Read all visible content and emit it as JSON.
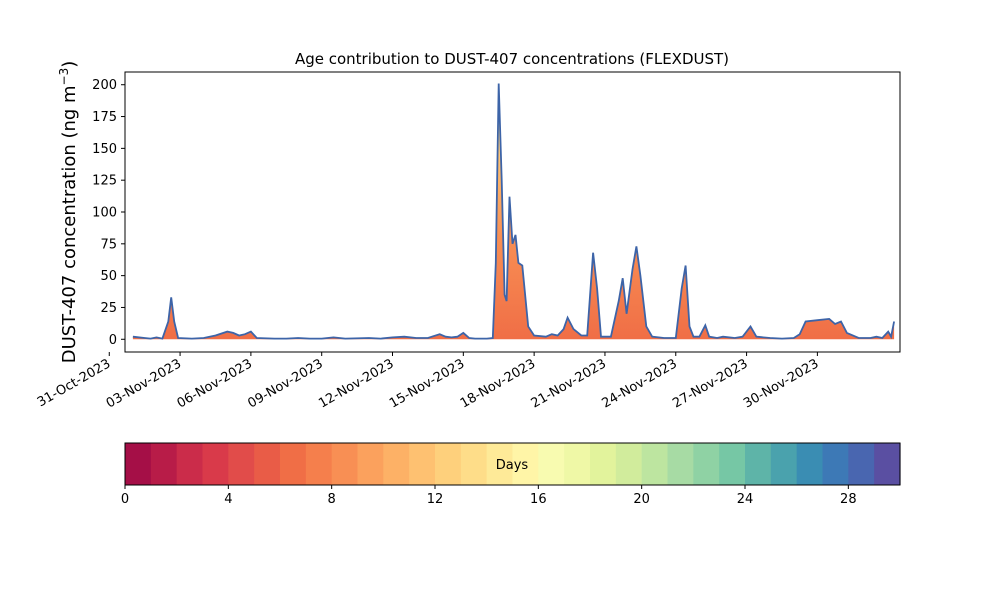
{
  "chart_data": {
    "type": "area",
    "title": "Age contribution to DUST-407 concentrations (FLEXDUST)",
    "ylabel": "DUST-407 concentration (ng m",
    "ylabel_superscript": "−3",
    "ylabel_suffix": ")",
    "xlabel": "",
    "ylim": [
      -10,
      210
    ],
    "xlim": [
      "2023-10-31T16:00",
      "2023-12-03T12:00"
    ],
    "y_ticks": [
      0,
      25,
      50,
      75,
      100,
      125,
      150,
      175,
      200
    ],
    "x_ticks": [
      "31-Oct-2023",
      "03-Nov-2023",
      "06-Nov-2023",
      "09-Nov-2023",
      "12-Nov-2023",
      "15-Nov-2023",
      "18-Nov-2023",
      "21-Nov-2023",
      "24-Nov-2023",
      "27-Nov-2023",
      "30-Nov-2023"
    ],
    "x_tick_dates": [
      "2023-10-31",
      "2023-11-03",
      "2023-11-06",
      "2023-11-09",
      "2023-11-12",
      "2023-11-15",
      "2023-11-18",
      "2023-11-21",
      "2023-11-24",
      "2023-11-27",
      "2023-11-30"
    ],
    "grid": false,
    "series": [
      {
        "line_color": "#3d64a8",
        "points": [
          [
            "2023-11-01T00:00",
            2
          ],
          [
            "2023-11-01T12:00",
            1
          ],
          [
            "2023-11-01T18:00",
            0.5
          ],
          [
            "2023-11-02T00:00",
            1.5
          ],
          [
            "2023-11-02T06:00",
            0.5
          ],
          [
            "2023-11-02T12:00",
            14
          ],
          [
            "2023-11-02T15:00",
            33
          ],
          [
            "2023-11-02T18:00",
            14
          ],
          [
            "2023-11-02T22:00",
            1
          ],
          [
            "2023-11-03T12:00",
            0.5
          ],
          [
            "2023-11-04T00:00",
            1
          ],
          [
            "2023-11-04T12:00",
            3
          ],
          [
            "2023-11-05T00:00",
            6
          ],
          [
            "2023-11-05T06:00",
            5
          ],
          [
            "2023-11-05T12:00",
            3
          ],
          [
            "2023-11-05T18:00",
            4
          ],
          [
            "2023-11-06T00:00",
            6
          ],
          [
            "2023-11-06T06:00",
            1
          ],
          [
            "2023-11-07T00:00",
            0.5
          ],
          [
            "2023-11-07T12:00",
            0.5
          ],
          [
            "2023-11-08T00:00",
            1
          ],
          [
            "2023-11-08T12:00",
            0.5
          ],
          [
            "2023-11-09T00:00",
            0.5
          ],
          [
            "2023-11-09T12:00",
            1.5
          ],
          [
            "2023-11-10T00:00",
            0.5
          ],
          [
            "2023-11-11T00:00",
            1
          ],
          [
            "2023-11-11T12:00",
            0.5
          ],
          [
            "2023-11-12T00:00",
            1.5
          ],
          [
            "2023-11-12T12:00",
            2
          ],
          [
            "2023-11-13T00:00",
            1
          ],
          [
            "2023-11-13T12:00",
            1
          ],
          [
            "2023-11-14T00:00",
            4
          ],
          [
            "2023-11-14T06:00",
            2
          ],
          [
            "2023-11-14T12:00",
            1.5
          ],
          [
            "2023-11-14T18:00",
            2
          ],
          [
            "2023-11-15T00:00",
            5
          ],
          [
            "2023-11-15T06:00",
            1
          ],
          [
            "2023-11-15T12:00",
            0.5
          ],
          [
            "2023-11-16T00:00",
            0.5
          ],
          [
            "2023-11-16T06:00",
            1
          ],
          [
            "2023-11-16T09:00",
            60
          ],
          [
            "2023-11-16T12:00",
            201
          ],
          [
            "2023-11-16T15:00",
            125
          ],
          [
            "2023-11-16T18:00",
            35
          ],
          [
            "2023-11-16T20:00",
            30
          ],
          [
            "2023-11-16T23:00",
            112
          ],
          [
            "2023-11-17T02:00",
            75
          ],
          [
            "2023-11-17T05:00",
            82
          ],
          [
            "2023-11-17T08:00",
            60
          ],
          [
            "2023-11-17T12:00",
            58
          ],
          [
            "2023-11-17T18:00",
            10
          ],
          [
            "2023-11-18T00:00",
            3
          ],
          [
            "2023-11-18T12:00",
            2
          ],
          [
            "2023-11-18T18:00",
            4
          ],
          [
            "2023-11-19T00:00",
            3
          ],
          [
            "2023-11-19T06:00",
            8
          ],
          [
            "2023-11-19T10:00",
            17
          ],
          [
            "2023-11-19T16:00",
            8
          ],
          [
            "2023-11-20T00:00",
            3
          ],
          [
            "2023-11-20T06:00",
            3
          ],
          [
            "2023-11-20T12:00",
            68
          ],
          [
            "2023-11-20T16:00",
            40
          ],
          [
            "2023-11-20T20:00",
            2
          ],
          [
            "2023-11-21T06:00",
            2
          ],
          [
            "2023-11-21T14:00",
            30
          ],
          [
            "2023-11-21T18:00",
            48
          ],
          [
            "2023-11-21T22:00",
            20
          ],
          [
            "2023-11-22T04:00",
            55
          ],
          [
            "2023-11-22T08:00",
            73
          ],
          [
            "2023-11-22T12:00",
            50
          ],
          [
            "2023-11-22T18:00",
            10
          ],
          [
            "2023-11-23T00:00",
            2
          ],
          [
            "2023-11-23T12:00",
            1
          ],
          [
            "2023-11-24T00:00",
            1
          ],
          [
            "2023-11-24T06:00",
            40
          ],
          [
            "2023-11-24T10:00",
            58
          ],
          [
            "2023-11-24T14:00",
            10
          ],
          [
            "2023-11-24T18:00",
            2
          ],
          [
            "2023-11-25T00:00",
            2
          ],
          [
            "2023-11-25T06:00",
            11
          ],
          [
            "2023-11-25T10:00",
            2
          ],
          [
            "2023-11-25T18:00",
            1
          ],
          [
            "2023-11-26T00:00",
            2
          ],
          [
            "2023-11-26T12:00",
            1
          ],
          [
            "2023-11-26T20:00",
            2
          ],
          [
            "2023-11-27T04:00",
            10
          ],
          [
            "2023-11-27T10:00",
            2
          ],
          [
            "2023-11-28T00:00",
            1
          ],
          [
            "2023-11-28T12:00",
            0.5
          ],
          [
            "2023-11-29T00:00",
            1
          ],
          [
            "2023-11-29T06:00",
            4
          ],
          [
            "2023-11-29T12:00",
            14
          ],
          [
            "2023-11-30T00:00",
            15
          ],
          [
            "2023-11-30T12:00",
            16
          ],
          [
            "2023-11-30T18:00",
            12
          ],
          [
            "2023-12-01T00:00",
            14
          ],
          [
            "2023-12-01T06:00",
            5
          ],
          [
            "2023-12-01T18:00",
            1
          ],
          [
            "2023-12-02T06:00",
            1
          ],
          [
            "2023-12-02T12:00",
            2
          ],
          [
            "2023-12-02T18:00",
            1
          ],
          [
            "2023-12-03T00:00",
            6
          ],
          [
            "2023-12-03T03:00",
            2
          ],
          [
            "2023-12-03T06:00",
            14
          ]
        ]
      }
    ],
    "colorbar": {
      "label": "Days",
      "range": [
        0,
        30
      ],
      "ticks": [
        0,
        4,
        8,
        12,
        16,
        20,
        24,
        28
      ],
      "bins": 30,
      "colors": [
        "#a50f47",
        "#b81c48",
        "#cb2c4a",
        "#d93a4a",
        "#e14c4a",
        "#e95c47",
        "#f06e46",
        "#f57f4c",
        "#f88f54",
        "#fba15d",
        "#fdb166",
        "#fec171",
        "#fed07c",
        "#fedd89",
        "#feea98",
        "#fff5a7",
        "#f8fbb0",
        "#eff8a6",
        "#e2f39c",
        "#d1ec9c",
        "#bde5a0",
        "#a7dba4",
        "#8fd2a4",
        "#76c7a5",
        "#5eb4a8",
        "#4aa2ad",
        "#3a8db3",
        "#3d79b6",
        "#4966b0",
        "#5a4fa2"
      ]
    }
  }
}
